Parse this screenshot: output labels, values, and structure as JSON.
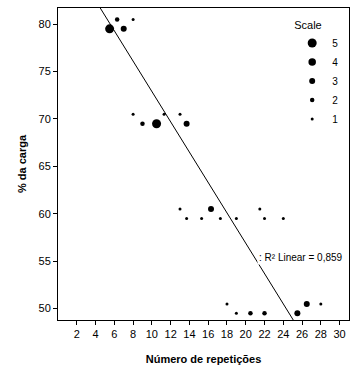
{
  "chart_data": {
    "type": "scatter",
    "x_label": "Número de repetições",
    "y_label": "% da carga",
    "legend_title": "Scale",
    "legend": "top right",
    "color": "#000000",
    "marker": "circle",
    "grid": false,
    "xlim": [
      0,
      31
    ],
    "ylim": [
      48.8,
      81.7
    ],
    "xticks": [
      2,
      4,
      6,
      8,
      10,
      12,
      14,
      16,
      18,
      20,
      22,
      24,
      26,
      28,
      30
    ],
    "yticks": [
      50,
      55,
      60,
      65,
      70,
      75,
      80
    ],
    "series": [
      {
        "name": "5",
        "size": 5,
        "x": [
          5.5,
          10.5
        ],
        "values": [
          79.5,
          69.5
        ]
      },
      {
        "name": "4",
        "size": 4,
        "x": [],
        "values": []
      },
      {
        "name": "3",
        "size": 3,
        "x": [
          7,
          13.7,
          16.3,
          25.5,
          26.5
        ],
        "values": [
          79.5,
          69.5,
          60.5,
          49.5,
          50.5
        ]
      },
      {
        "name": "2",
        "size": 2,
        "x": [
          6.3,
          9,
          20.5,
          22
        ],
        "values": [
          80.5,
          69.5,
          49.5,
          49.5
        ]
      },
      {
        "name": "1",
        "size": 1,
        "x": [
          8,
          8,
          11.3,
          13,
          13,
          21.5,
          13.7,
          15.3,
          17.3,
          19,
          22,
          24,
          18,
          28,
          19
        ],
        "values": [
          80.5,
          70.5,
          70.5,
          70.5,
          60.5,
          60.5,
          59.5,
          59.5,
          59.5,
          59.5,
          59.5,
          59.5,
          50.5,
          50.5,
          49.5
        ]
      }
    ],
    "regression": {
      "intercept": 88.9,
      "slope": -1.6,
      "label": ": R² Linear = 0,859",
      "line_style": "solid"
    }
  }
}
